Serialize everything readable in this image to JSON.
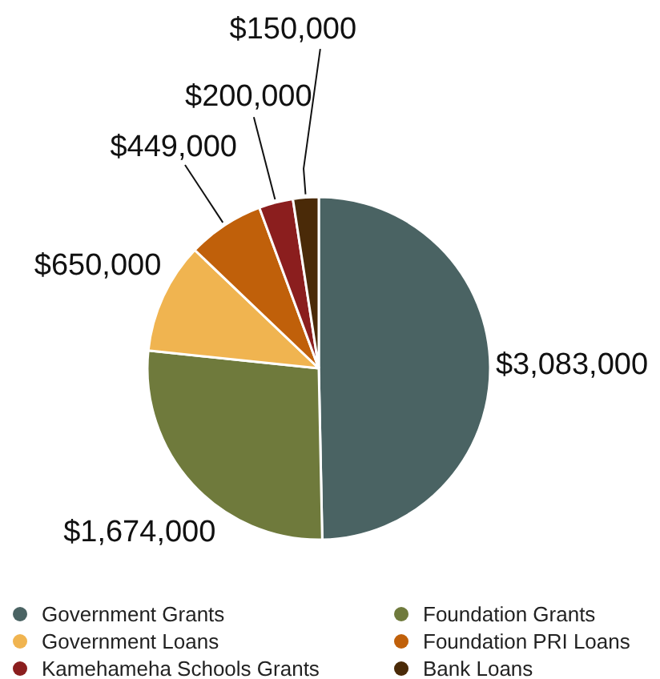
{
  "chart_data": {
    "type": "pie",
    "categories": [
      "Government Grants",
      "Foundation Grants",
      "Government Loans",
      "Foundation PRI Loans",
      "Kamehameha Schools Grants",
      "Bank Loans"
    ],
    "values": [
      3083000,
      1674000,
      650000,
      449000,
      200000,
      150000
    ],
    "colors": [
      "#4a6363",
      "#6f7a3c",
      "#f0b450",
      "#c0600a",
      "#8b1e1e",
      "#4a2a08"
    ],
    "value_labels": [
      "$3,083,000",
      "$1,674,000",
      "$650,000",
      "$449,000",
      "$200,000",
      "$150,000"
    ],
    "legend": "bottom"
  }
}
